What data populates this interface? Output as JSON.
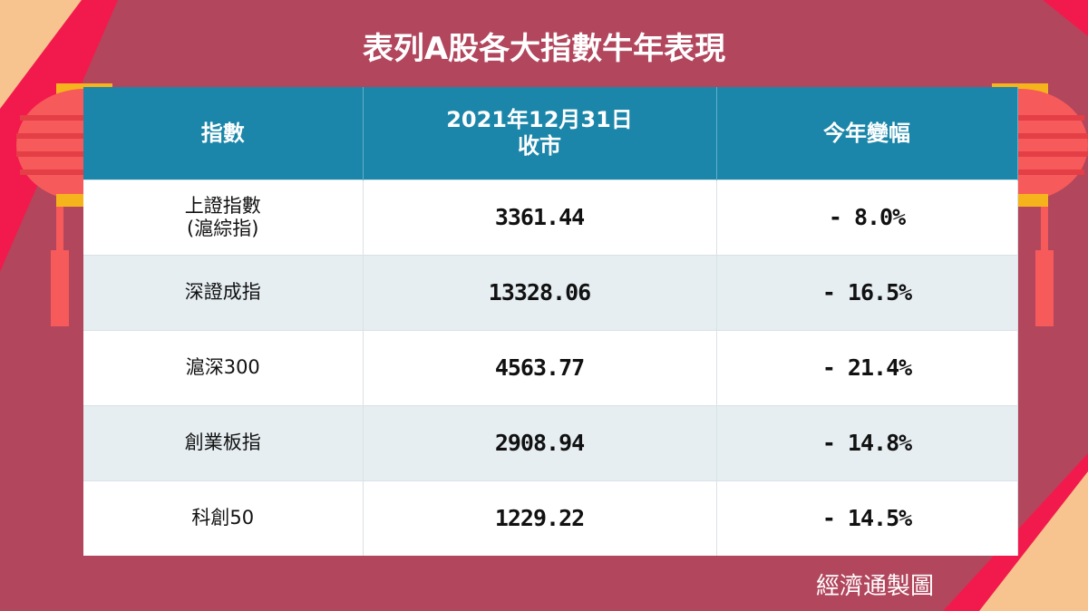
{
  "header": {
    "title": "表列A股各大指數牛年表現"
  },
  "table": {
    "columns": [
      "指數",
      "2021年12月31日\n收市",
      "今年變幅"
    ],
    "rows": [
      [
        "上證指數\n(滬綜指)",
        "3361.44",
        "- 8.0%"
      ],
      [
        "深證成指",
        "13328.06",
        "- 16.5%"
      ],
      [
        "滬深300",
        "4563.77",
        "- 21.4%"
      ],
      [
        "創業板指",
        "2908.94",
        "- 14.8%"
      ],
      [
        "科創50",
        "1229.22",
        "- 14.5%"
      ]
    ]
  },
  "footer": {
    "credit": "經濟通製圖"
  }
}
